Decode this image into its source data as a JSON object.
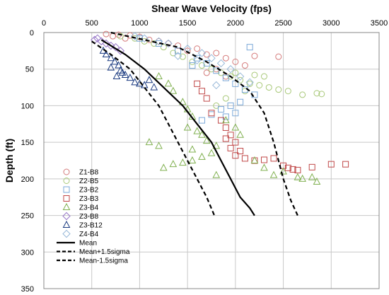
{
  "chart_data": {
    "type": "scatter",
    "title": "",
    "xlabel": "Shear Wave Velocity (fps)",
    "ylabel": "Depth (ft)",
    "xlim": [
      0,
      3500
    ],
    "ylim": [
      0,
      350
    ],
    "y_inverted": true,
    "x_axis_position": "top",
    "x_ticks": [
      0,
      500,
      1000,
      1500,
      2000,
      2500,
      3000,
      3500
    ],
    "y_ticks": [
      0,
      50,
      100,
      150,
      200,
      250,
      300,
      350
    ],
    "grid": true,
    "legend_position": "bottom-left",
    "series": [
      {
        "name": "Z1-B8",
        "marker": "circle",
        "color": "#d47a7a",
        "points": [
          [
            650,
            2
          ],
          [
            720,
            5
          ],
          [
            780,
            3
          ],
          [
            850,
            8
          ],
          [
            900,
            4
          ],
          [
            1000,
            6
          ],
          [
            1100,
            10
          ],
          [
            1200,
            12
          ],
          [
            1300,
            15
          ],
          [
            1400,
            18
          ],
          [
            1500,
            25
          ],
          [
            1600,
            22
          ],
          [
            1700,
            30
          ],
          [
            1800,
            28
          ],
          [
            1900,
            35
          ],
          [
            2000,
            40
          ],
          [
            2200,
            32
          ],
          [
            2100,
            45
          ],
          [
            1800,
            50
          ],
          [
            1700,
            55
          ],
          [
            2450,
            33
          ],
          [
            1900,
            60
          ]
        ]
      },
      {
        "name": "Z2-B5",
        "marker": "circle",
        "color": "#a8c878",
        "points": [
          [
            800,
            5
          ],
          [
            950,
            8
          ],
          [
            1050,
            12
          ],
          [
            1150,
            15
          ],
          [
            1250,
            20
          ],
          [
            1350,
            28
          ],
          [
            1450,
            33
          ],
          [
            1550,
            40
          ],
          [
            1650,
            45
          ],
          [
            1750,
            50
          ],
          [
            1850,
            55
          ],
          [
            1950,
            60
          ],
          [
            2050,
            65
          ],
          [
            2150,
            70
          ],
          [
            2250,
            72
          ],
          [
            2350,
            75
          ],
          [
            2450,
            78
          ],
          [
            2550,
            80
          ],
          [
            2300,
            60
          ],
          [
            2100,
            80
          ],
          [
            1900,
            90
          ],
          [
            1800,
            100
          ],
          [
            2700,
            85
          ],
          [
            2850,
            83
          ],
          [
            2900,
            84
          ],
          [
            2000,
            55
          ],
          [
            2200,
            58
          ]
        ]
      },
      {
        "name": "Z3-B2",
        "marker": "square",
        "color": "#7aa8d8",
        "points": [
          [
            1000,
            8
          ],
          [
            1200,
            15
          ],
          [
            1400,
            25
          ],
          [
            1600,
            35
          ],
          [
            1700,
            42
          ],
          [
            1800,
            52
          ],
          [
            1900,
            62
          ],
          [
            2000,
            70
          ],
          [
            2100,
            78
          ],
          [
            2200,
            85
          ],
          [
            2050,
            95
          ],
          [
            1950,
            100
          ],
          [
            1850,
            105
          ],
          [
            1750,
            112
          ],
          [
            1650,
            120
          ],
          [
            1900,
            115
          ],
          [
            2000,
            110
          ],
          [
            2150,
            20
          ],
          [
            1550,
            45
          ]
        ]
      },
      {
        "name": "Z3-B3",
        "marker": "square",
        "color": "#c04848",
        "points": [
          [
            1600,
            70
          ],
          [
            1650,
            80
          ],
          [
            1700,
            90
          ],
          [
            1750,
            110
          ],
          [
            1850,
            120
          ],
          [
            1900,
            130
          ],
          [
            1950,
            140
          ],
          [
            2000,
            150
          ],
          [
            1950,
            158
          ],
          [
            2050,
            162
          ],
          [
            2000,
            168
          ],
          [
            2100,
            172
          ],
          [
            2300,
            174
          ],
          [
            2400,
            172
          ],
          [
            2500,
            182
          ],
          [
            2550,
            185
          ],
          [
            2600,
            187
          ],
          [
            2650,
            188
          ],
          [
            2800,
            184
          ],
          [
            3000,
            180
          ],
          [
            3150,
            180
          ],
          [
            2200,
            175
          ],
          [
            1900,
            145
          ]
        ]
      },
      {
        "name": "Z3-B4",
        "marker": "triangle",
        "color": "#80b050",
        "points": [
          [
            1200,
            60
          ],
          [
            1300,
            70
          ],
          [
            1350,
            80
          ],
          [
            1450,
            95
          ],
          [
            1500,
            105
          ],
          [
            1550,
            115
          ],
          [
            1500,
            130
          ],
          [
            1600,
            135
          ],
          [
            1650,
            140
          ],
          [
            1700,
            148
          ],
          [
            1800,
            155
          ],
          [
            1750,
            165
          ],
          [
            1650,
            170
          ],
          [
            1550,
            175
          ],
          [
            1450,
            178
          ],
          [
            1350,
            180
          ],
          [
            1250,
            185
          ],
          [
            1100,
            150
          ],
          [
            1200,
            155
          ],
          [
            1550,
            160
          ],
          [
            1900,
            120
          ],
          [
            2000,
            130
          ],
          [
            2050,
            140
          ],
          [
            2200,
            175
          ],
          [
            2300,
            185
          ],
          [
            2400,
            195
          ],
          [
            2500,
            190
          ],
          [
            2700,
            200
          ],
          [
            2800,
            198
          ],
          [
            2850,
            204
          ],
          [
            2650,
            198
          ],
          [
            1800,
            195
          ]
        ]
      },
      {
        "name": "Z3-B8",
        "marker": "diamond",
        "color": "#9878c8",
        "points": [
          [
            530,
            10
          ],
          [
            560,
            8
          ],
          [
            600,
            12
          ],
          [
            650,
            15
          ],
          [
            700,
            18
          ],
          [
            750,
            20
          ],
          [
            800,
            25
          ]
        ]
      },
      {
        "name": "Z3-B12",
        "marker": "triangle",
        "color": "#1a3a80",
        "points": [
          [
            620,
            25
          ],
          [
            650,
            30
          ],
          [
            700,
            35
          ],
          [
            740,
            40
          ],
          [
            780,
            45
          ],
          [
            800,
            52
          ],
          [
            850,
            58
          ],
          [
            900,
            62
          ],
          [
            950,
            68
          ],
          [
            1000,
            70
          ],
          [
            1050,
            72
          ],
          [
            1100,
            65
          ],
          [
            1150,
            75
          ],
          [
            700,
            48
          ],
          [
            760,
            60
          ],
          [
            820,
            55
          ]
        ]
      },
      {
        "name": "Z4-B4",
        "marker": "diamond",
        "color": "#98b8d8",
        "points": [
          [
            950,
            5
          ],
          [
            1050,
            8
          ],
          [
            1200,
            12
          ],
          [
            1300,
            15
          ],
          [
            1500,
            22
          ],
          [
            1650,
            28
          ],
          [
            1750,
            35
          ],
          [
            1850,
            42
          ],
          [
            1950,
            50
          ],
          [
            2050,
            60
          ],
          [
            2150,
            68
          ],
          [
            1600,
            38
          ],
          [
            1400,
            32
          ],
          [
            1800,
            72
          ]
        ]
      }
    ],
    "curves": [
      {
        "name": "Mean",
        "style": "solid",
        "color": "#000000",
        "points": [
          [
            600,
            10
          ],
          [
            850,
            30
          ],
          [
            1050,
            50
          ],
          [
            1250,
            75
          ],
          [
            1450,
            100
          ],
          [
            1600,
            125
          ],
          [
            1750,
            150
          ],
          [
            1850,
            175
          ],
          [
            1950,
            200
          ],
          [
            2050,
            225
          ],
          [
            2150,
            240
          ],
          [
            2200,
            250
          ]
        ]
      },
      {
        "name": "Mean+1.5sigma",
        "style": "dashed",
        "color": "#000000",
        "points": [
          [
            700,
            0
          ],
          [
            1050,
            10
          ],
          [
            1400,
            20
          ],
          [
            1700,
            40
          ],
          [
            1950,
            60
          ],
          [
            2150,
            80
          ],
          [
            2300,
            110
          ],
          [
            2400,
            150
          ],
          [
            2500,
            200
          ],
          [
            2580,
            230
          ],
          [
            2650,
            250
          ]
        ]
      },
      {
        "name": "Mean-1.5sigma",
        "style": "dashed",
        "color": "#000000",
        "points": [
          [
            500,
            12
          ],
          [
            700,
            30
          ],
          [
            900,
            50
          ],
          [
            1050,
            75
          ],
          [
            1200,
            100
          ],
          [
            1300,
            125
          ],
          [
            1400,
            150
          ],
          [
            1500,
            175
          ],
          [
            1600,
            200
          ],
          [
            1700,
            225
          ],
          [
            1780,
            250
          ]
        ]
      }
    ]
  }
}
